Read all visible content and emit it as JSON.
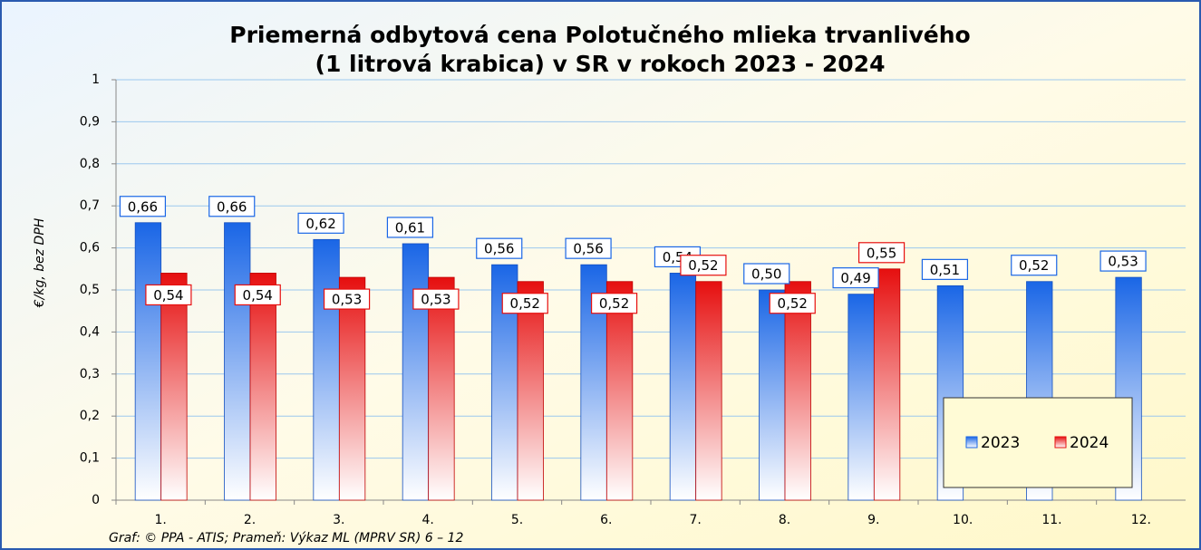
{
  "chart_data": {
    "type": "bar",
    "title": [
      "Priemerná odbytová cena Polotučného mlieka trvanlivého",
      "(1 litrová krabica) v SR v rokoch 2023 - 2024"
    ],
    "ylabel": "€/kg,  bez DPH",
    "footer": "Graf: © PPA - ATIS; Prameň: Výkaz ML (MPRV SR) 6 – 12",
    "categories": [
      "1.",
      "2.",
      "3.",
      "4.",
      "5.",
      "6.",
      "7.",
      "8.",
      "9.",
      "10.",
      "11.",
      "12."
    ],
    "series": [
      {
        "name": "2023",
        "color": "#1a66e6",
        "values": [
          0.66,
          0.66,
          0.62,
          0.61,
          0.56,
          0.56,
          0.54,
          0.5,
          0.49,
          0.51,
          0.52,
          0.53
        ],
        "value_labels": [
          "0,66",
          "0,66",
          "0,62",
          "0,61",
          "0,56",
          "0,56",
          "0,54",
          "0,50",
          "0,49",
          "0,51",
          "0,52",
          "0,53"
        ]
      },
      {
        "name": "2024",
        "color": "#e60f0f",
        "values": [
          0.54,
          0.54,
          0.53,
          0.53,
          0.52,
          0.52,
          0.52,
          0.52,
          0.55,
          null,
          null,
          null
        ],
        "value_labels": [
          "0,54",
          "0,54",
          "0,53",
          "0,53",
          "0,52",
          "0,52",
          "0,52",
          "0,52",
          "0,55",
          null,
          null,
          null
        ]
      }
    ],
    "ylim": [
      0,
      1
    ],
    "yticks": [
      0,
      {
        "value": 0.1,
        "label": "0,1"
      },
      {
        "value": 0.2,
        "label": "0,2"
      },
      {
        "value": 0.3,
        "label": "0,3"
      },
      {
        "value": 0.4,
        "label": "0,4"
      },
      {
        "value": 0.5,
        "label": "0,5"
      },
      {
        "value": 0.6,
        "label": "0,6"
      },
      {
        "value": 0.7,
        "label": "0,7"
      },
      {
        "value": 0.8,
        "label": "0,8"
      },
      {
        "value": 0.9,
        "label": "0,9"
      },
      1
    ],
    "grid": true,
    "legend": "lower-right"
  }
}
